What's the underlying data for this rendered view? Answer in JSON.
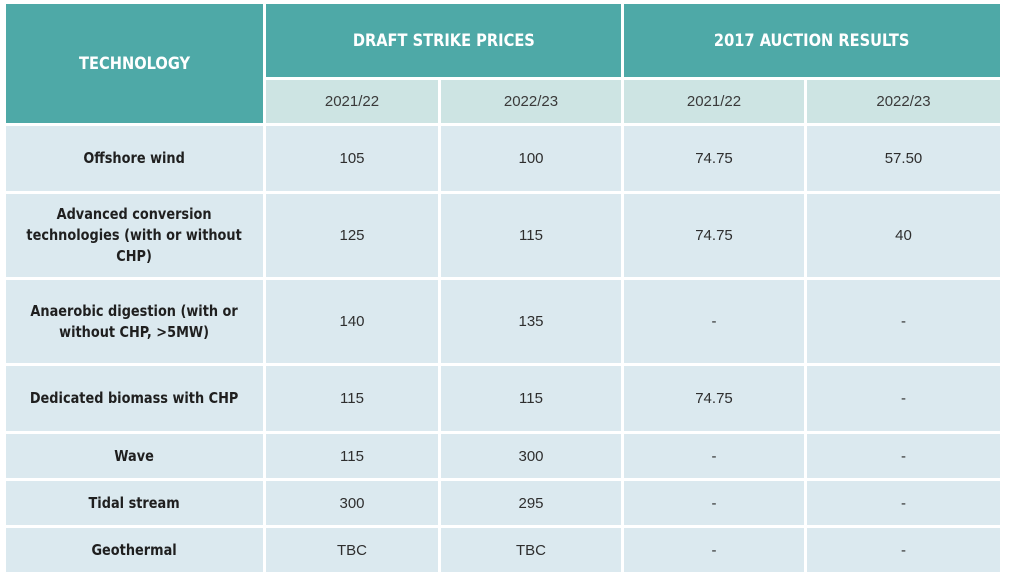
{
  "header": {
    "technology": "TECHNOLOGY",
    "draft_strike_prices": "DRAFT STRIKE PRICES",
    "auction_results": "2017 AUCTION RESULTS",
    "years": [
      "2021/22",
      "2022/23",
      "2021/22",
      "2022/23"
    ]
  },
  "rows": [
    {
      "technology": "Offshore wind",
      "values": [
        "105",
        "100",
        "74.75",
        "57.50"
      ]
    },
    {
      "technology": "Advanced conversion technologies (with or without CHP)",
      "values": [
        "125",
        "115",
        "74.75",
        "40"
      ]
    },
    {
      "technology": "Anaerobic digestion (with or without CHP, >5MW)",
      "values": [
        "140",
        "135",
        "-",
        "-"
      ]
    },
    {
      "technology": "Dedicated biomass with CHP",
      "values": [
        "115",
        "115",
        "74.75",
        "-"
      ]
    },
    {
      "technology": "Wave",
      "values": [
        "115",
        "300",
        "-",
        "-"
      ]
    },
    {
      "technology": "Tidal stream",
      "values": [
        "300",
        "295",
        "-",
        "-"
      ]
    },
    {
      "technology": "Geothermal",
      "values": [
        "TBC",
        "TBC",
        "-",
        "-"
      ]
    }
  ],
  "colors": {
    "header_teal": "#4ea9a7",
    "year_row": "#cde4e3",
    "body_cell": "#dbe9ef"
  }
}
